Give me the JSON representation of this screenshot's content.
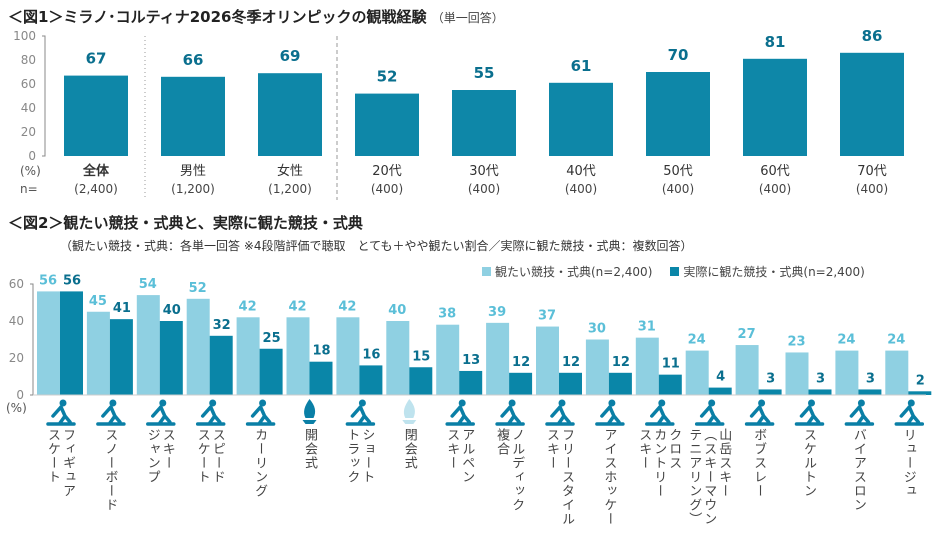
{
  "colors": {
    "fig1_bar": "#0e87a8",
    "wish": "#8fd0e2",
    "actual": "#0a86a8",
    "wish_label": "#5bbfd8",
    "actual_label": "#0a6f8e"
  },
  "fig1": {
    "title": "＜図1＞ミラノ･コルティナ2026冬季オリンピックの観戦経験",
    "subtitle": "（単一回答）",
    "chart_data": {
      "type": "bar",
      "title": "＜図1＞ミラノ･コルティナ2026冬季オリンピックの観戦経験",
      "ylabel": "(%)",
      "ylim": [
        0,
        100
      ],
      "yticks": [
        "0",
        "20",
        "40",
        "60",
        "80",
        "100"
      ],
      "n_label": "n=",
      "categories": [
        "全体",
        "男性",
        "女性",
        "20代",
        "30代",
        "40代",
        "50代",
        "60代",
        "70代"
      ],
      "n": [
        "(2,400)",
        "(1,200)",
        "(1,200)",
        "(400)",
        "(400)",
        "(400)",
        "(400)",
        "(400)",
        "(400)"
      ],
      "values": [
        67,
        66,
        69,
        52,
        55,
        61,
        70,
        81,
        86
      ]
    }
  },
  "fig2": {
    "title": "＜図2＞観たい競技・式典と、実際に観た競技・式典",
    "note": "（観たい競技・式典：各単一回答 ※4段階評価で聴取　とても＋やや観たい割合／実際に観た競技・式典：複数回答）",
    "chart_data": {
      "type": "bar",
      "ylabel": "(%)",
      "ylim": [
        0,
        60
      ],
      "yticks": [
        "0",
        "20",
        "40",
        "60"
      ],
      "legend_position": "top-right",
      "categories": [
        "フィギュア\nスケート",
        "スノーボード",
        "スキー\nジャンプ",
        "スピード\nスケート",
        "カーリング",
        "開会式",
        "ショート\nトラック",
        "閉会式",
        "アルペン\nスキー",
        "ノルディック\n複合",
        "フリースタイル\nスキー",
        "アイスホッケー",
        "クロス\nカントリー\nスキー",
        "山岳スキー\n（スキーマウン\nテニアリング）",
        "ボブスレー",
        "スケルトン",
        "バイアスロン",
        "リュージュ"
      ],
      "icons": [
        "figure-skating-icon",
        "snowboard-icon",
        "ski-jumping-icon",
        "speed-skating-icon",
        "curling-icon",
        "cauldron-flame-icon",
        "short-track-icon",
        "cauldron-flame-icon",
        "alpine-skiing-icon",
        "nordic-combined-icon",
        "freestyle-skiing-icon",
        "ice-hockey-icon",
        "cross-country-icon",
        "ski-mountaineering-icon",
        "bobsleigh-icon",
        "skeleton-icon",
        "biathlon-icon",
        "luge-icon"
      ],
      "series": [
        {
          "name": "観たい競技・式典(n=2,400)",
          "values": [
            56,
            45,
            54,
            52,
            42,
            42,
            42,
            40,
            38,
            39,
            37,
            30,
            31,
            24,
            27,
            23,
            24,
            24
          ]
        },
        {
          "name": "実際に観た競技・式典(n=2,400)",
          "values": [
            56,
            41,
            40,
            32,
            25,
            18,
            16,
            15,
            13,
            12,
            12,
            12,
            11,
            4,
            3,
            3,
            3,
            2
          ]
        }
      ]
    }
  }
}
